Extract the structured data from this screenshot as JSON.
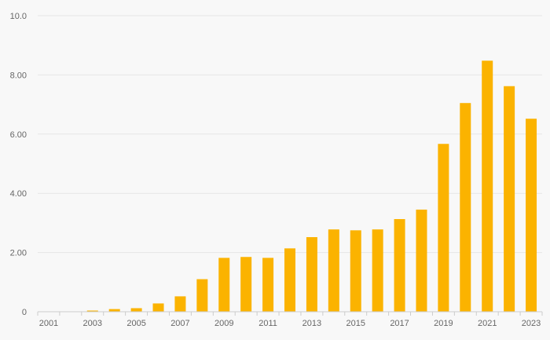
{
  "chart_data": {
    "type": "bar",
    "title": "",
    "xlabel": "",
    "ylabel": "",
    "ylim": [
      0,
      10
    ],
    "grid": true,
    "bar_color": "#fbb300",
    "grid_color": "#e6e6e6",
    "background_color": "#f8f8f8",
    "y_ticks": [
      0,
      2,
      4,
      6,
      8,
      10
    ],
    "y_tick_labels": [
      "0",
      "2.00",
      "4.00",
      "6.00",
      "8.00",
      "10.0"
    ],
    "categories": [
      "2001",
      "2002",
      "2003",
      "2004",
      "2005",
      "2006",
      "2007",
      "2008",
      "2009",
      "2010",
      "2011",
      "2012",
      "2013",
      "2014",
      "2015",
      "2016",
      "2017",
      "2018",
      "2019",
      "2020",
      "2021",
      "2022",
      "2023"
    ],
    "x_tick_labels": [
      "2001",
      "",
      "2003",
      "",
      "2005",
      "",
      "2007",
      "",
      "2009",
      "",
      "2011",
      "",
      "2013",
      "",
      "2015",
      "",
      "2017",
      "",
      "2019",
      "",
      "2021",
      "",
      "2023"
    ],
    "values": [
      0.0,
      0.0,
      0.04,
      0.09,
      0.12,
      0.28,
      0.52,
      1.1,
      1.82,
      1.85,
      1.82,
      2.14,
      2.52,
      2.78,
      2.75,
      2.78,
      3.13,
      3.45,
      5.67,
      7.05,
      8.48,
      7.62,
      6.52
    ]
  }
}
